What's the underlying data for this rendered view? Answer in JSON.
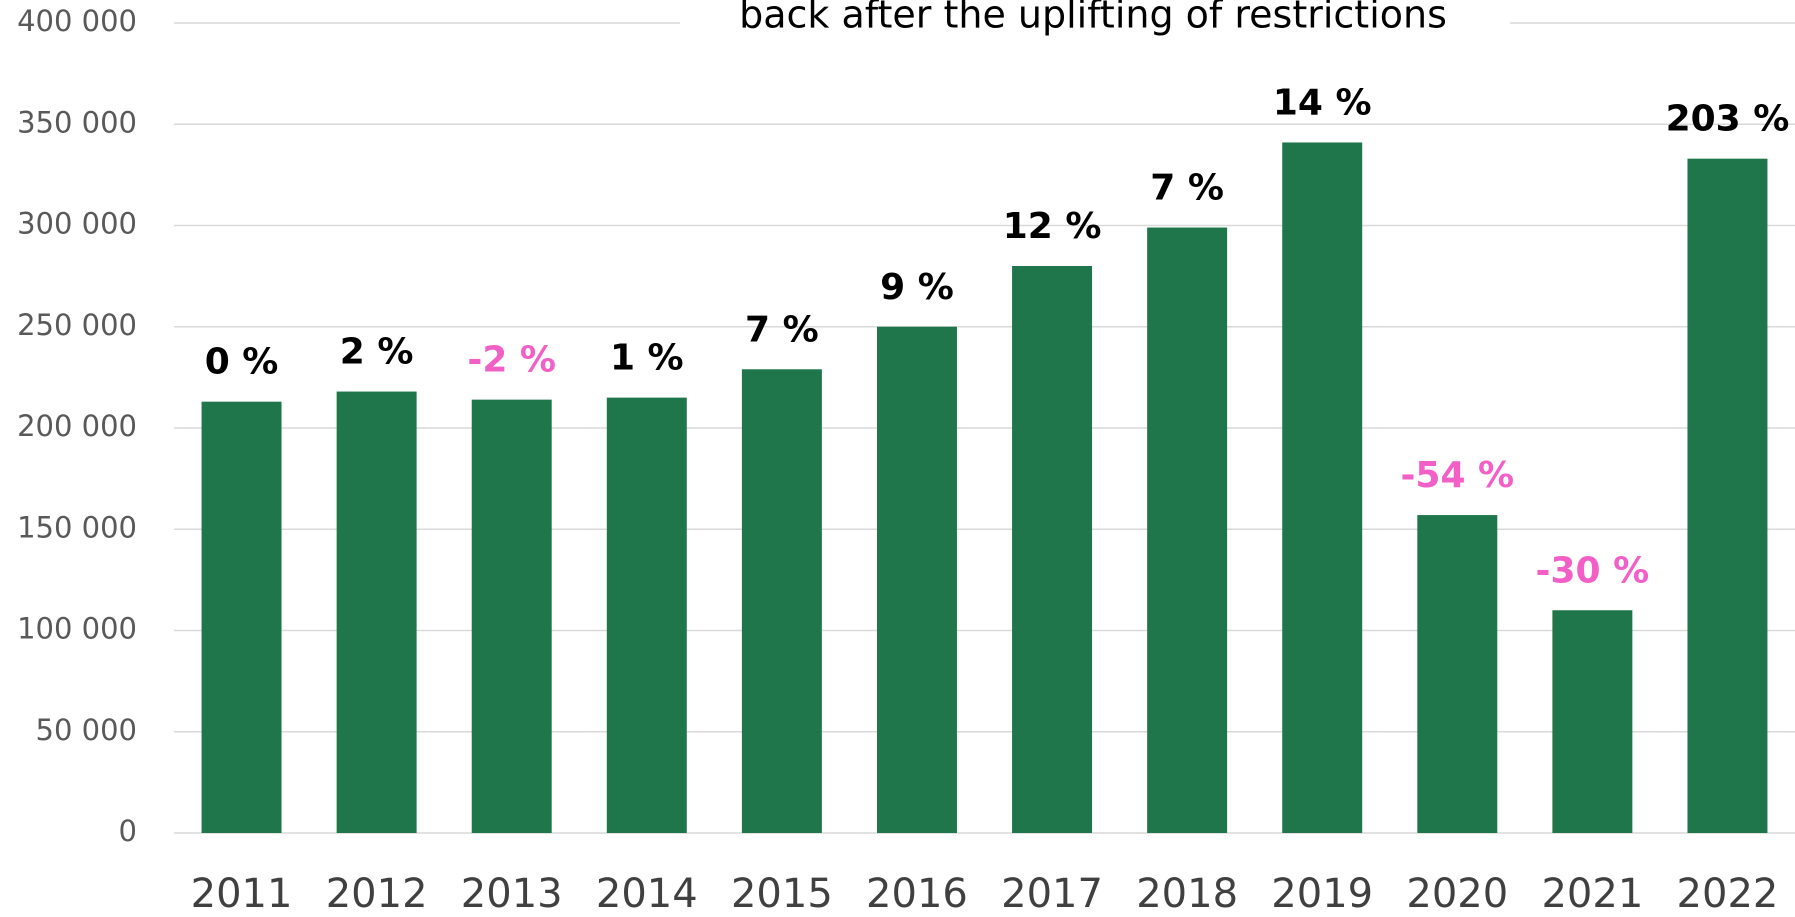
{
  "chart_data": {
    "type": "bar",
    "title": "back after the uplifting of restrictions",
    "categories": [
      "2011",
      "2012",
      "2013",
      "2014",
      "2015",
      "2016",
      "2017",
      "2018",
      "2019",
      "2020",
      "2021",
      "2022"
    ],
    "values": [
      213000,
      218000,
      214000,
      215000,
      229000,
      250000,
      280000,
      299000,
      341000,
      157000,
      110000,
      333000
    ],
    "color": "#1e764a",
    "changes": [
      0,
      2,
      -2,
      1,
      7,
      9,
      12,
      7,
      14,
      -54,
      -30,
      203
    ],
    "change_labels": [
      "0 %",
      "2 %",
      "-2 %",
      "1 %",
      "7 %",
      "9 %",
      "12 %",
      "7 %",
      "14 %",
      "-54 %",
      "-30 %",
      "203 %"
    ],
    "positive_change_color": "#000000",
    "negative_change_color": "#f25fc6",
    "ylim": [
      0,
      400000
    ],
    "yticks": [
      0,
      {
        "value": 50000,
        "label": "50 000"
      },
      {
        "value": 100000,
        "label": "100 000"
      },
      {
        "value": 150000,
        "label": "150 000"
      },
      {
        "value": 200000,
        "label": "200 000"
      },
      {
        "value": 250000,
        "label": "250 000"
      },
      {
        "value": 300000,
        "label": "300 000"
      },
      {
        "value": 350000,
        "label": "350 000"
      },
      {
        "value": 400000,
        "label": "400 000"
      }
    ],
    "grid": true
  }
}
